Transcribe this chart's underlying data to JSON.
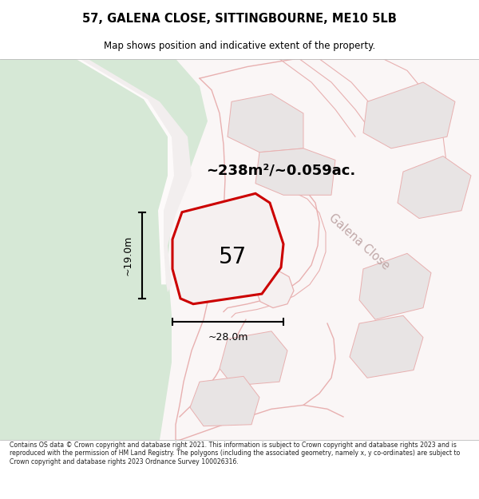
{
  "title_line1": "57, GALENA CLOSE, SITTINGBOURNE, ME10 5LB",
  "title_line2": "Map shows position and indicative extent of the property.",
  "area_text": "~238m²/~0.059ac.",
  "label_57": "57",
  "dim_height": "~19.0m",
  "dim_width": "~28.0m",
  "galena_close_label": "Galena Close",
  "footer_text": "Contains OS data © Crown copyright and database right 2021. This information is subject to Crown copyright and database rights 2023 and is reproduced with the permission of HM Land Registry. The polygons (including the associated geometry, namely x, y co-ordinates) are subject to Crown copyright and database rights 2023 Ordnance Survey 100026316.",
  "map_bg": "#faf7f7",
  "green_color": "#d6e8d6",
  "green_path_color": "#f0f5f0",
  "road_line_color": "#e8b0b0",
  "plot_fill": "#e8e4e4",
  "plot_outline": "#e8b0b0",
  "highlight_stroke": "#cc0000",
  "highlight_fill": "#f5f0f0",
  "dim_line_color": "#000000",
  "text_color": "#000000",
  "galena_label_color": "#c0a8a8",
  "footer_bg": "#ffffff",
  "title_fontsize": 10.5,
  "subtitle_fontsize": 8.5,
  "area_fontsize": 13,
  "label_57_fontsize": 20,
  "dim_fontsize": 9,
  "galena_fontsize": 10.5
}
